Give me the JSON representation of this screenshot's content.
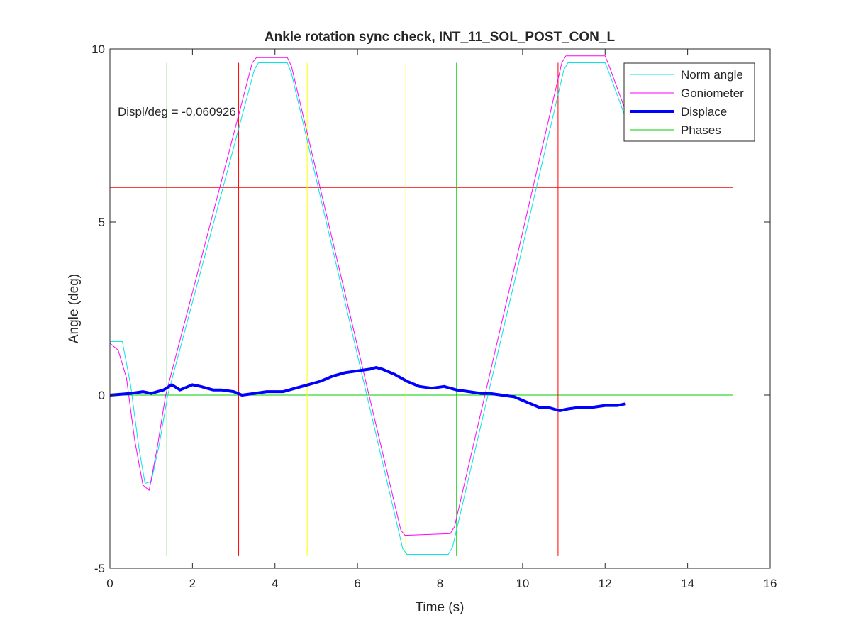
{
  "chart_data": {
    "type": "line",
    "title": "Ankle rotation sync check, INT_11_SOL_POST_CON_L",
    "xlabel": "Time (s)",
    "ylabel": "Angle (deg)",
    "xlim": [
      0,
      16
    ],
    "ylim": [
      -5,
      10
    ],
    "x_ticks": [
      0,
      2,
      4,
      6,
      8,
      10,
      12,
      14,
      16
    ],
    "y_ticks": [
      -5,
      0,
      5,
      10
    ],
    "x_tick_labels": [
      "0",
      "2",
      "4",
      "6",
      "8",
      "10",
      "12",
      "14",
      "16"
    ],
    "y_tick_labels": [
      "-5",
      "0",
      "5",
      "10"
    ],
    "annotation": "Displ/deg = -0.060926",
    "grid": false,
    "legend": {
      "placement": "top-right",
      "entries": [
        "Norm angle",
        "Goniometer",
        "Displace",
        "Phases"
      ]
    },
    "series": [
      {
        "name": "Norm angle",
        "color": "#00e5e5",
        "width": 1,
        "x": [
          0,
          0.3,
          0.5,
          0.7,
          0.85,
          1.0,
          1.2,
          1.4,
          3.5,
          3.6,
          4.3,
          4.4,
          7.1,
          7.2,
          8.2,
          8.3,
          11.0,
          11.1,
          12.0,
          12.1,
          12.5
        ],
        "y": [
          1.55,
          1.55,
          0.3,
          -1.5,
          -2.55,
          -2.5,
          -1.4,
          0.0,
          9.4,
          9.6,
          9.6,
          9.3,
          -4.45,
          -4.6,
          -4.6,
          -4.4,
          9.4,
          9.6,
          9.6,
          9.3,
          8.0
        ]
      },
      {
        "name": "Goniometer",
        "color": "#ff00ff",
        "width": 1,
        "x": [
          0,
          0.2,
          0.4,
          0.6,
          0.8,
          0.95,
          1.15,
          1.35,
          3.45,
          3.55,
          4.3,
          4.4,
          7.05,
          7.15,
          8.25,
          8.35,
          10.95,
          11.05,
          12.0,
          12.1,
          12.5
        ],
        "y": [
          1.5,
          1.3,
          0.5,
          -1.3,
          -2.6,
          -2.75,
          -1.5,
          0.0,
          9.6,
          9.75,
          9.75,
          9.5,
          -3.9,
          -4.05,
          -4.0,
          -3.8,
          9.6,
          9.8,
          9.8,
          9.5,
          8.2
        ]
      },
      {
        "name": "Displace",
        "color": "#0000ff",
        "width": 4,
        "x": [
          0,
          0.5,
          0.8,
          1.0,
          1.3,
          1.5,
          1.7,
          2.0,
          2.2,
          2.5,
          2.7,
          3.0,
          3.2,
          3.5,
          3.8,
          4.2,
          4.5,
          4.8,
          5.1,
          5.4,
          5.7,
          6.0,
          6.3,
          6.45,
          6.6,
          6.9,
          7.2,
          7.5,
          7.8,
          8.1,
          8.4,
          8.7,
          9.0,
          9.2,
          9.5,
          9.8,
          10.1,
          10.4,
          10.6,
          10.9,
          11.1,
          11.4,
          11.7,
          12.0,
          12.3,
          12.5
        ],
        "y": [
          0.0,
          0.05,
          0.1,
          0.05,
          0.15,
          0.3,
          0.15,
          0.3,
          0.25,
          0.15,
          0.15,
          0.1,
          0.0,
          0.05,
          0.1,
          0.1,
          0.2,
          0.3,
          0.4,
          0.55,
          0.65,
          0.7,
          0.75,
          0.8,
          0.75,
          0.6,
          0.4,
          0.25,
          0.2,
          0.25,
          0.15,
          0.1,
          0.05,
          0.05,
          0.0,
          -0.05,
          -0.2,
          -0.35,
          -0.35,
          -0.45,
          -0.4,
          -0.35,
          -0.35,
          -0.3,
          -0.3,
          -0.25
        ]
      }
    ],
    "phases": {
      "name": "Phases",
      "horizontal_lines": [
        {
          "y": 6.0,
          "color": "#ff0000"
        },
        {
          "y": 0.0,
          "color": "#00cc00"
        }
      ],
      "vertical_lines": [
        {
          "x": 1.38,
          "color": "#00cc00"
        },
        {
          "x": 3.12,
          "color": "#ff0000"
        },
        {
          "x": 4.78,
          "color": "#ffff00"
        },
        {
          "x": 7.17,
          "color": "#ffff00"
        },
        {
          "x": 8.4,
          "color": "#00cc00"
        },
        {
          "x": 10.86,
          "color": "#ff0000"
        }
      ],
      "range": [
        -4.65,
        9.6
      ],
      "line_xlim": [
        0,
        15.1
      ],
      "legend_color": "#00cc00"
    }
  }
}
